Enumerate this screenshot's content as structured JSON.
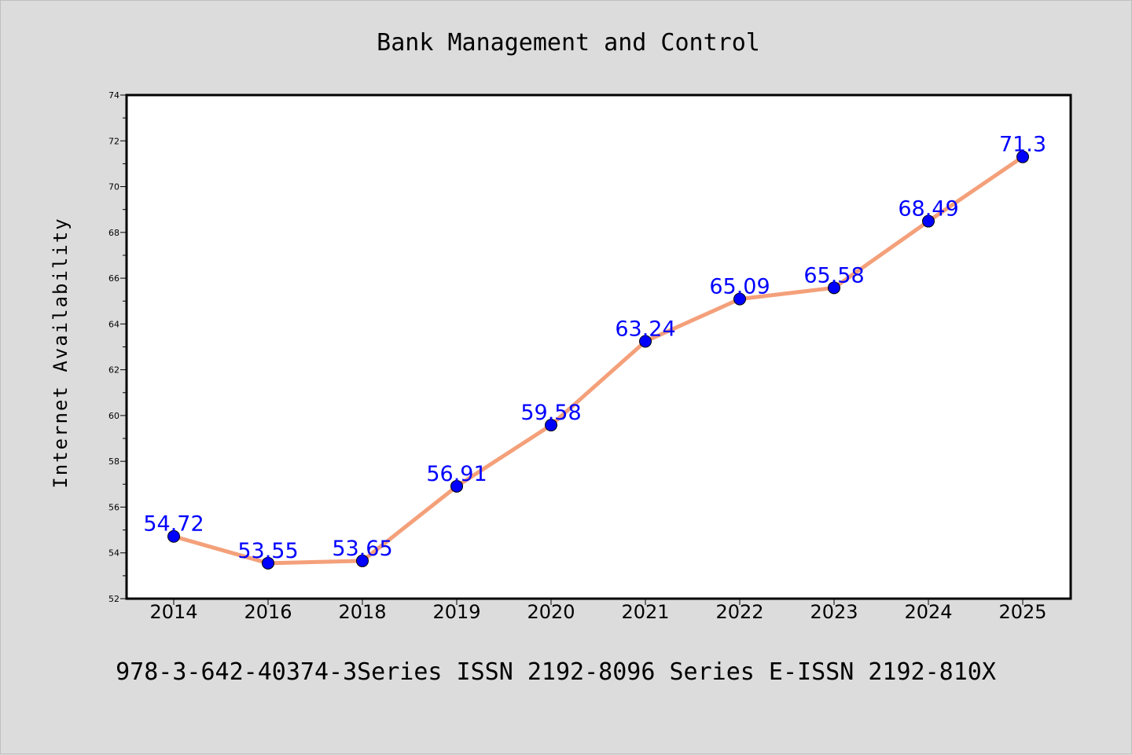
{
  "chart_data": {
    "type": "line",
    "title": "Bank Management and Control",
    "xlabel": "",
    "ylabel": "Internet Availability",
    "categories": [
      "2014",
      "2016",
      "2018",
      "2019",
      "2020",
      "2021",
      "2022",
      "2023",
      "2024",
      "2025"
    ],
    "series": [
      {
        "values": [
          54.72,
          53.55,
          53.65,
          56.91,
          59.58,
          63.24,
          65.09,
          65.58,
          68.49,
          71.3
        ],
        "labels": [
          "54.72",
          "53.55",
          "53.65",
          "56.91",
          "59.58",
          "63.24",
          "65.09",
          "65.58",
          "68.49",
          "71.3"
        ]
      }
    ],
    "ylim": [
      52,
      74
    ],
    "yticks": [
      "52",
      "54",
      "56",
      "58",
      "60",
      "62",
      "64",
      "66",
      "68",
      "70",
      "72",
      "74"
    ],
    "grid": false,
    "legend": "none",
    "line_color": "#f4a07a",
    "marker_color": "#0000ff",
    "label_color": "#0000ff",
    "background": "#dcdcdc",
    "plot_background": "#ffffff"
  },
  "footer": "978-3-642-40374-3Series ISSN 2192-8096 Series E-ISSN 2192-810X"
}
